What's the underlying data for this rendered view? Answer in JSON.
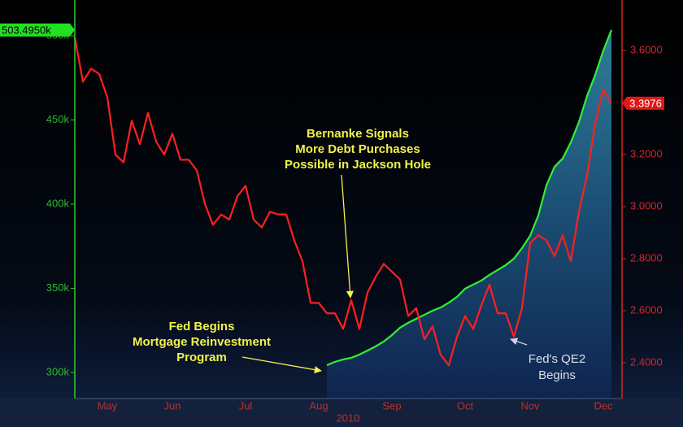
{
  "chart_data": {
    "type": "line",
    "x_label": "2010",
    "categories": [
      null,
      null,
      null,
      null,
      "May",
      null,
      null,
      null,
      null,
      null,
      null,
      null,
      "Jun",
      null,
      null,
      null,
      null,
      null,
      null,
      null,
      null,
      "Jul",
      null,
      null,
      null,
      null,
      null,
      null,
      null,
      null,
      "Aug",
      null,
      null,
      null,
      null,
      null,
      null,
      null,
      null,
      "Sep",
      null,
      null,
      null,
      null,
      null,
      null,
      null,
      null,
      "Oct",
      null,
      null,
      null,
      null,
      null,
      null,
      null,
      "Nov",
      null,
      null,
      null,
      null,
      null,
      null,
      null,
      null,
      "Dec",
      null
    ],
    "series": [
      {
        "color": "#ff2020",
        "axis": "y2",
        "values": [
          3.65,
          3.48,
          3.53,
          3.51,
          3.42,
          3.2,
          3.17,
          3.33,
          3.24,
          3.36,
          3.25,
          3.2,
          3.28,
          3.18,
          3.18,
          3.14,
          3.01,
          2.93,
          2.97,
          2.95,
          3.04,
          3.08,
          2.95,
          2.92,
          2.98,
          2.97,
          2.97,
          2.87,
          2.79,
          2.63,
          2.63,
          2.59,
          2.59,
          2.53,
          2.64,
          2.53,
          2.67,
          2.73,
          2.78,
          2.75,
          2.72,
          2.58,
          2.61,
          2.49,
          2.54,
          2.43,
          2.39,
          2.5,
          2.58,
          2.53,
          2.62,
          2.7,
          2.59,
          2.59,
          2.5,
          2.61,
          2.86,
          2.89,
          2.87,
          2.81,
          2.89,
          2.79,
          2.98,
          3.12,
          3.32,
          3.45,
          3.3976
        ],
        "value_labels": [
          null,
          null,
          null,
          null,
          null,
          null,
          null,
          null,
          null,
          null,
          null,
          null,
          null,
          null,
          null,
          null,
          null,
          null,
          null,
          null,
          null,
          null,
          null,
          null,
          null,
          null,
          null,
          null,
          null,
          null,
          null,
          null,
          null,
          null,
          null,
          null,
          null,
          null,
          null,
          null,
          null,
          null,
          null,
          null,
          null,
          null,
          null,
          null,
          null,
          null,
          null,
          null,
          null,
          null,
          null,
          null,
          null,
          null,
          null,
          null,
          null,
          null,
          null,
          null,
          null,
          null,
          "3.3976"
        ]
      },
      {
        "color": "#33ee33",
        "axis": "y",
        "values": [
          null,
          null,
          null,
          null,
          null,
          null,
          null,
          null,
          null,
          null,
          null,
          null,
          null,
          null,
          null,
          null,
          null,
          null,
          null,
          null,
          null,
          null,
          null,
          null,
          null,
          null,
          null,
          null,
          null,
          null,
          null,
          304300,
          306300,
          307700,
          308700,
          310600,
          313000,
          315500,
          318400,
          322200,
          326600,
          329500,
          331900,
          334300,
          336700,
          338600,
          341500,
          344900,
          349800,
          352200,
          354600,
          358000,
          360900,
          363800,
          367600,
          373900,
          381200,
          393200,
          411100,
          422200,
          427100,
          436700,
          448800,
          464300,
          476800,
          491300,
          503495
        ],
        "value_labels": [
          null,
          null,
          null,
          null,
          null,
          null,
          null,
          null,
          null,
          null,
          null,
          null,
          null,
          null,
          null,
          null,
          null,
          null,
          null,
          null,
          null,
          null,
          null,
          null,
          null,
          null,
          null,
          null,
          null,
          null,
          null,
          null,
          null,
          null,
          null,
          null,
          null,
          null,
          null,
          null,
          null,
          null,
          null,
          null,
          null,
          null,
          null,
          null,
          null,
          null,
          null,
          null,
          null,
          null,
          null,
          null,
          null,
          null,
          null,
          null,
          null,
          null,
          null,
          null,
          null,
          null,
          "503.4950k"
        ]
      }
    ],
    "ylim": [
      284500,
      521300
    ],
    "yticks": [
      {
        "value": 300000,
        "label": "300k"
      },
      {
        "value": 350000,
        "label": "350k"
      },
      {
        "value": 400000,
        "label": "400k"
      },
      {
        "value": 450000,
        "label": "450k"
      },
      {
        "value": 500000,
        "label": "500k"
      }
    ],
    "y2lim": [
      2.2625,
      3.794
    ],
    "y2ticks": [
      {
        "value": 2.4,
        "label": "2.4000"
      },
      {
        "value": 2.6,
        "label": "2.6000"
      },
      {
        "value": 2.8,
        "label": "2.8000"
      },
      {
        "value": 3.0,
        "label": "3.0000"
      },
      {
        "value": 3.2,
        "label": "3.2000"
      },
      {
        "value": 3.6,
        "label": "3.6000"
      }
    ],
    "annotations": [
      {
        "lines": [
          "Bernanke Signals",
          "More Debt Purchases",
          "Possible in Jackson Hole"
        ]
      },
      {
        "lines": [
          "Fed Begins",
          "Mortgage Reinvestment",
          "Program"
        ]
      },
      {
        "lines": [
          "Fed's QE2",
          "Begins"
        ]
      }
    ]
  }
}
